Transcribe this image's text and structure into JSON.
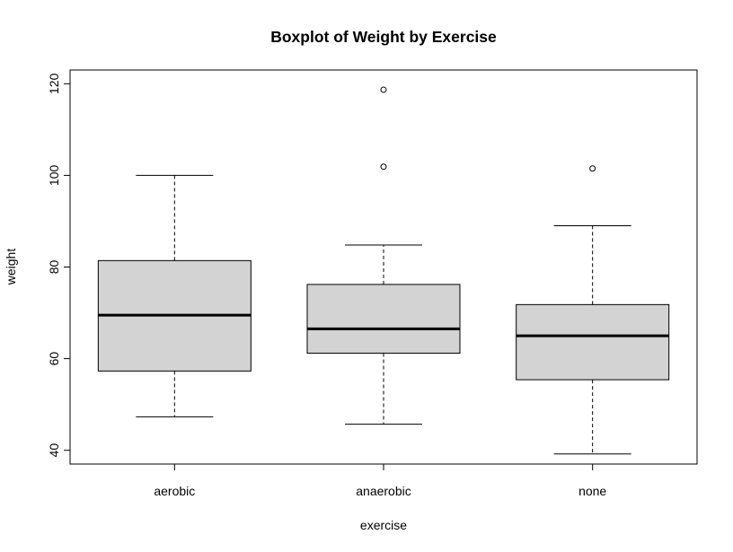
{
  "chart_data": {
    "type": "boxplot",
    "title": "Boxplot of Weight by Exercise",
    "xlabel": "exercise",
    "ylabel": "weight",
    "ylim": [
      37,
      123
    ],
    "yticks": [
      40,
      60,
      80,
      100,
      120
    ],
    "categories": [
      "aerobic",
      "anaerobic",
      "none"
    ],
    "boxes": [
      {
        "name": "aerobic",
        "whisker_low": 47.3,
        "q1": 57.3,
        "median": 69.5,
        "q3": 81.4,
        "whisker_high": 100,
        "outliers": []
      },
      {
        "name": "anaerobic",
        "whisker_low": 45.7,
        "q1": 61.2,
        "median": 66.5,
        "q3": 76.2,
        "whisker_high": 84.8,
        "outliers": [
          101.9,
          118.7
        ]
      },
      {
        "name": "none",
        "whisker_low": 39.2,
        "q1": 55.4,
        "median": 65.0,
        "q3": 71.8,
        "whisker_high": 89.0,
        "outliers": [
          101.5
        ]
      }
    ],
    "box_fill": "#d3d3d3",
    "grid": false,
    "legend": "none"
  }
}
